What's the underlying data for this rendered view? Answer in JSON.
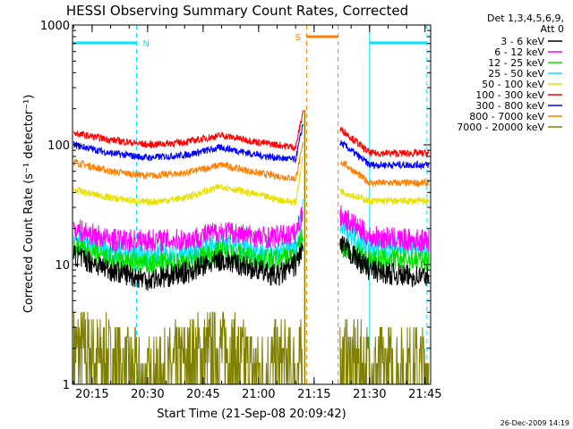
{
  "chart_data": {
    "type": "line",
    "title": "HESSI Observing Summary Count Rates, Corrected",
    "xlabel": "Start Time (21-Sep-08 20:09:42)",
    "ylabel": "Corrected Count Rate (s⁻¹ detector⁻¹)",
    "yscale": "log",
    "ylim": [
      1,
      1000
    ],
    "xlim": [
      "20:09:42",
      "21:46:30"
    ],
    "x_ticks": [
      "20:15",
      "20:30",
      "20:45",
      "21:00",
      "21:15",
      "21:30",
      "21:45"
    ],
    "y_ticks": [
      "1",
      "10",
      "100",
      "1000"
    ],
    "legend_header": [
      "Det 1,3,4,5,6,9,",
      "Att 0"
    ],
    "legend_position": "right, outside plot",
    "timestamp": "26-Dec-2009 14:19",
    "flags": [
      {
        "label": "N",
        "color": "#00e5ff",
        "periods": [
          [
            "20:09:42",
            "20:27:00"
          ],
          [
            "21:30:00",
            "21:45:30"
          ]
        ]
      },
      {
        "label": "S",
        "color": "#ff8000",
        "periods": [
          [
            "21:13:00",
            "21:21:30"
          ]
        ]
      }
    ],
    "data_gap": [
      "21:12:00",
      "21:22:00"
    ],
    "x_values": [
      "20:10",
      "20:20",
      "20:30",
      "20:40",
      "20:50",
      "21:00",
      "21:05",
      "21:10",
      "21:12",
      "21:23",
      "21:30",
      "21:40",
      "21:46"
    ],
    "series": [
      {
        "name": "3 - 6 keV",
        "color": "#000000",
        "values": [
          12,
          9,
          7.5,
          8.5,
          11,
          9,
          8,
          10,
          14,
          14,
          9,
          8,
          8
        ]
      },
      {
        "name": "6 - 12 keV",
        "color": "#ff00ff",
        "values": [
          20,
          16,
          16,
          16,
          19,
          17,
          17,
          18,
          28,
          25,
          17,
          16,
          16
        ]
      },
      {
        "name": "12 - 25 keV",
        "color": "#00e000",
        "values": [
          14,
          11,
          10,
          10.5,
          13,
          11,
          11,
          12,
          18,
          14,
          11,
          11,
          11
        ]
      },
      {
        "name": "25 - 50 keV",
        "color": "#00e5ff",
        "values": [
          17,
          13,
          12,
          12.5,
          15,
          13,
          13,
          14,
          30,
          20,
          14,
          14,
          14
        ]
      },
      {
        "name": "50 - 100 keV",
        "color": "#e8e000",
        "values": [
          42,
          36,
          33,
          36,
          45,
          38,
          35,
          33,
          80,
          40,
          34,
          34,
          34
        ]
      },
      {
        "name": "100 - 300 keV",
        "color": "#ff0000",
        "values": [
          125,
          110,
          100,
          105,
          120,
          105,
          100,
          95,
          190,
          130,
          85,
          85,
          85
        ]
      },
      {
        "name": "300 - 800 keV",
        "color": "#0000ff",
        "values": [
          100,
          85,
          78,
          82,
          95,
          82,
          78,
          75,
          150,
          100,
          68,
          68,
          68
        ]
      },
      {
        "name": "800 - 7000 keV",
        "color": "#ff8000",
        "values": [
          72,
          60,
          55,
          58,
          68,
          58,
          55,
          52,
          100,
          70,
          48,
          48,
          48
        ]
      },
      {
        "name": "7000 - 20000 keV",
        "color": "#808000",
        "values": [
          2,
          1.5,
          1,
          1.5,
          2,
          1.2,
          1.5,
          1.3,
          1.5,
          1.5,
          1.3,
          1.3,
          1.3
        ]
      }
    ]
  }
}
